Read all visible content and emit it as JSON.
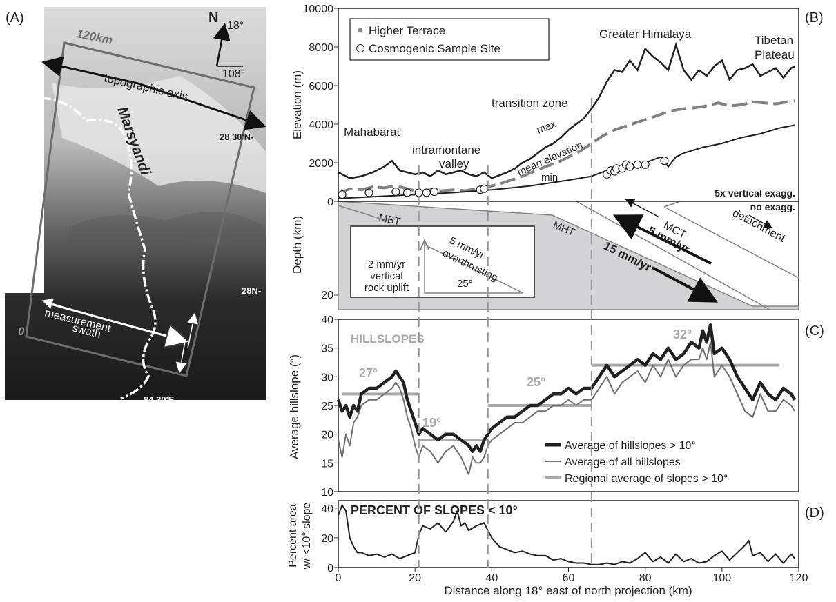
{
  "panels": {
    "a": "(A)",
    "b": "(B)",
    "c": "(C)",
    "d": "(D)"
  },
  "map": {
    "scale_label": "120km",
    "north": "N",
    "angle_a": "18°",
    "angle_b": "108°",
    "axis_label": "topographic axis",
    "river": "Marsyandi",
    "lat1": "28 30'N-",
    "lat2": "28N-",
    "lon": "84 30'E",
    "zero": "0",
    "swath1": "measurement",
    "swath2": "swath"
  },
  "elevation": {
    "ylabel": "Elevation (m)",
    "yticks": [
      "10000",
      "8000",
      "6000",
      "4000",
      "2000",
      "0"
    ],
    "legend_higher": "Higher Terrace",
    "legend_cosmo": "Cosmogenic Sample Site",
    "regions": {
      "mahabarat": "Mahabarat",
      "intramontane1": "intramontane",
      "intramontane2": "valley",
      "transition": "transition zone",
      "greater": "Greater Himalaya",
      "tibetan1": "Tibetan",
      "tibetan2": "Plateau"
    },
    "curves": {
      "max": "max",
      "mean": "mean elevation",
      "min": "min"
    },
    "exag": "5x vertical exagg.",
    "noexag": "no exagg."
  },
  "depth": {
    "ylabel": "Depth (km)",
    "tick": "20",
    "faults": {
      "mbt": "MBT",
      "mht": "MHT",
      "mct": "MCT",
      "detach": "detachment"
    },
    "rate15": "15 mm/yr",
    "rate5": "5 mm/yr",
    "inset": {
      "l1": "2 mm/yr",
      "l2": "vertical",
      "l3": "rock uplift",
      "h1": "5 mm/yr",
      "h2": "overthrusting",
      "angle": "25°"
    }
  },
  "hill": {
    "ylabel": "Average hillslope (°)",
    "yticks": [
      "40",
      "35",
      "30",
      "25",
      "20",
      "15",
      "10"
    ],
    "title": "HILLSLOPES",
    "regional": [
      "27°",
      "19°",
      "25°",
      "32°"
    ],
    "legend": [
      "Average of hillslopes > 10°",
      "Average of all hillslopes",
      "Regional average of slopes > 10°"
    ]
  },
  "pct": {
    "title": "PERCENT OF SLOPES < 10°",
    "ylabel1": "Percent area",
    "ylabel2": "w/ <10° slope",
    "yticks": [
      "40",
      "20",
      "0"
    ]
  },
  "xaxis": {
    "label": "Distance along 18° east of north projection (km)",
    "ticks": [
      "0",
      "20",
      "40",
      "60",
      "80",
      "100",
      "120"
    ]
  },
  "chart_data": [
    {
      "type": "line",
      "panel": "B",
      "xlabel": "",
      "ylabel": "Elevation (m)",
      "xlim": [
        0,
        120
      ],
      "ylim": [
        0,
        10000
      ],
      "series": [
        {
          "name": "max",
          "x": [
            0,
            3,
            6,
            9,
            12,
            14,
            16,
            18,
            20,
            22,
            24,
            26,
            28,
            30,
            32,
            34,
            36,
            38,
            40,
            42,
            44,
            46,
            48,
            50,
            52,
            54,
            56,
            58,
            60,
            62,
            64,
            66,
            68,
            70,
            72,
            74,
            76,
            78,
            80,
            82,
            84,
            86,
            88,
            90,
            92,
            94,
            96,
            98,
            100,
            102,
            104,
            106,
            108,
            110,
            112,
            114,
            116,
            118,
            119
          ],
          "values": [
            1500,
            1200,
            1300,
            1500,
            1800,
            2100,
            1600,
            1500,
            1400,
            1500,
            1300,
            1600,
            1400,
            1500,
            1600,
            1400,
            1300,
            1500,
            1200,
            1350,
            1500,
            1700,
            2000,
            2200,
            2500,
            2800,
            3000,
            3300,
            3700,
            4000,
            4300,
            4800,
            5400,
            6200,
            6800,
            6700,
            7300,
            6800,
            7900,
            7500,
            7200,
            6800,
            8100,
            6800,
            6300,
            6800,
            6500,
            7000,
            7300,
            6300,
            6800,
            6900,
            7100,
            6500,
            6700,
            6900,
            6400,
            6900,
            7000
          ]
        },
        {
          "name": "mean elevation",
          "x": [
            0,
            3,
            6,
            9,
            12,
            15,
            18,
            21,
            24,
            27,
            30,
            33,
            36,
            39,
            42,
            45,
            48,
            51,
            54,
            57,
            60,
            63,
            66,
            69,
            72,
            75,
            78,
            81,
            84,
            87,
            90,
            93,
            96,
            99,
            102,
            105,
            108,
            111,
            114,
            117,
            119
          ],
          "values": [
            400,
            650,
            600,
            750,
            700,
            800,
            650,
            500,
            600,
            550,
            600,
            550,
            650,
            750,
            900,
            1100,
            1300,
            1550,
            1800,
            2000,
            2300,
            2600,
            3000,
            3400,
            3700,
            3900,
            4100,
            4300,
            4500,
            4700,
            4800,
            4850,
            4950,
            5100,
            4950,
            5000,
            5150,
            5100,
            5050,
            5150,
            5200
          ]
        },
        {
          "name": "min",
          "x": [
            0,
            10,
            20,
            30,
            40,
            50,
            60,
            66,
            70,
            75,
            80,
            84,
            86,
            88,
            90,
            95,
            100,
            105,
            110,
            115,
            119
          ],
          "values": [
            150,
            250,
            350,
            450,
            600,
            800,
            1100,
            1300,
            1600,
            1800,
            2000,
            2300,
            1800,
            2300,
            2500,
            2800,
            3000,
            3300,
            3500,
            3800,
            3950
          ]
        }
      ]
    },
    {
      "type": "line",
      "panel": "C",
      "xlabel": "",
      "ylabel": "Average hillslope (°)",
      "xlim": [
        0,
        120
      ],
      "ylim": [
        10,
        40
      ],
      "series": [
        {
          "name": "Average of hillslopes > 10°",
          "x": [
            0,
            1,
            2,
            3,
            4,
            5,
            6,
            8,
            10,
            12,
            14,
            15,
            16,
            17,
            18,
            19,
            20,
            21,
            22,
            24,
            26,
            28,
            30,
            32,
            34,
            35,
            36,
            37,
            38,
            39,
            40,
            42,
            44,
            46,
            48,
            50,
            52,
            54,
            56,
            58,
            60,
            62,
            64,
            66,
            68,
            70,
            72,
            74,
            76,
            78,
            80,
            82,
            84,
            86,
            88,
            90,
            92,
            94,
            95,
            96,
            97,
            98,
            100,
            102,
            104,
            106,
            108,
            110,
            112,
            114,
            116,
            118,
            119
          ],
          "values": [
            26,
            24,
            25,
            23,
            25,
            24,
            27,
            28,
            28,
            29,
            30,
            31,
            30,
            29,
            26,
            24,
            22,
            20,
            21,
            20,
            19,
            20,
            20,
            19,
            18,
            17,
            18,
            17,
            19,
            20,
            21,
            22,
            23,
            23,
            24,
            25,
            25,
            26,
            27,
            27,
            28,
            27,
            28,
            28,
            30,
            32,
            30,
            31,
            32,
            33,
            32,
            34,
            33,
            35,
            33,
            34,
            36,
            35,
            38,
            36,
            39,
            34,
            35,
            33,
            30,
            28,
            26,
            29,
            27,
            26,
            28,
            27,
            26
          ]
        },
        {
          "name": "Average of all hillslopes",
          "x": [
            0,
            1,
            2,
            3,
            4,
            5,
            6,
            8,
            10,
            12,
            14,
            15,
            16,
            17,
            18,
            19,
            20,
            21,
            22,
            24,
            26,
            28,
            30,
            32,
            34,
            35,
            36,
            37,
            38,
            39,
            40,
            42,
            44,
            46,
            48,
            50,
            52,
            54,
            56,
            58,
            60,
            62,
            64,
            66,
            68,
            70,
            72,
            74,
            76,
            78,
            80,
            82,
            84,
            86,
            88,
            90,
            92,
            94,
            95,
            96,
            97,
            98,
            100,
            102,
            104,
            106,
            108,
            110,
            112,
            114,
            116,
            118,
            119
          ],
          "values": [
            19,
            16,
            20,
            18,
            22,
            23,
            25,
            26,
            26,
            27,
            28,
            29,
            28,
            26,
            23,
            21,
            18,
            16,
            18,
            17,
            15,
            17,
            18,
            16,
            13,
            16,
            15,
            15,
            16,
            18,
            19,
            20,
            21,
            22,
            22,
            23,
            24,
            24,
            25,
            25,
            26,
            25,
            26,
            26,
            28,
            30,
            27,
            29,
            30,
            31,
            29,
            32,
            30,
            33,
            30,
            32,
            33,
            33,
            35,
            33,
            36,
            30,
            32,
            30,
            27,
            24,
            23,
            27,
            24,
            24,
            26,
            25,
            24
          ]
        },
        {
          "name": "Regional average of slopes > 10°",
          "segments": [
            {
              "x": [
                1,
                21
              ],
              "value": 27
            },
            {
              "x": [
                21,
                39
              ],
              "value": 19
            },
            {
              "x": [
                39,
                66
              ],
              "value": 25
            },
            {
              "x": [
                66,
                115
              ],
              "value": 32
            }
          ]
        }
      ]
    },
    {
      "type": "line",
      "panel": "D",
      "xlabel": "Distance along 18° east of north projection (km)",
      "ylabel": "Percent area w/ <10° slope",
      "xlim": [
        0,
        120
      ],
      "ylim": [
        0,
        40
      ],
      "series": [
        {
          "name": "",
          "x": [
            0,
            1,
            2,
            3,
            4,
            5,
            6,
            8,
            10,
            12,
            14,
            16,
            18,
            20,
            21,
            22,
            24,
            26,
            28,
            30,
            31,
            32,
            33,
            34,
            36,
            38,
            40,
            42,
            44,
            46,
            48,
            50,
            52,
            54,
            56,
            58,
            60,
            62,
            64,
            66,
            68,
            70,
            72,
            74,
            76,
            78,
            80,
            82,
            84,
            86,
            88,
            90,
            92,
            94,
            96,
            98,
            100,
            102,
            104,
            106,
            107,
            108,
            110,
            112,
            114,
            116,
            118,
            119
          ],
          "values": [
            35,
            42,
            38,
            20,
            14,
            10,
            10,
            8,
            9,
            7,
            9,
            6,
            8,
            10,
            22,
            28,
            26,
            30,
            24,
            31,
            38,
            28,
            30,
            25,
            28,
            30,
            20,
            14,
            12,
            10,
            11,
            9,
            8,
            8,
            5,
            6,
            4,
            3,
            3,
            2,
            2,
            3,
            2,
            4,
            3,
            6,
            10,
            4,
            7,
            3,
            9,
            4,
            6,
            3,
            4,
            8,
            11,
            5,
            10,
            15,
            18,
            8,
            10,
            4,
            9,
            3,
            9,
            6
          ]
        }
      ]
    }
  ]
}
